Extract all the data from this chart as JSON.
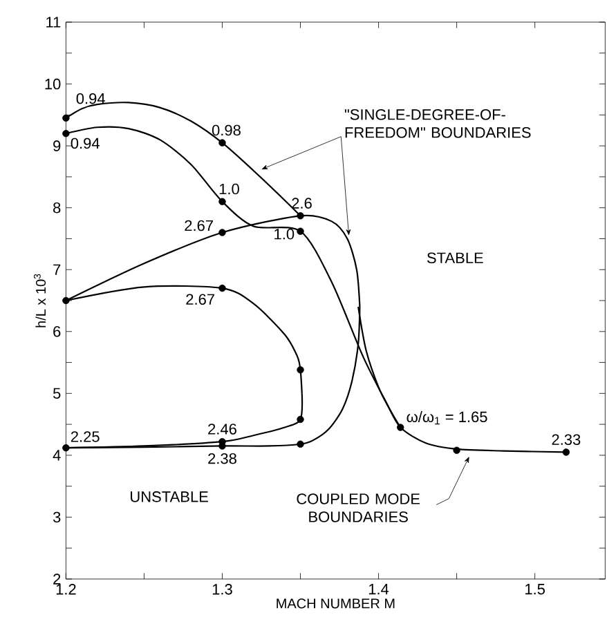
{
  "chart_data": {
    "type": "line",
    "xlabel": "MACH NUMBER M",
    "ylabel": "h/L x 10$^{3}$",
    "xlim": [
      1.2,
      1.545
    ],
    "ylim": [
      2,
      11
    ],
    "xticks": [
      1.2,
      {
        "value": 1.25,
        "label": null
      },
      1.3,
      {
        "value": 1.35,
        "label": null
      },
      1.4,
      {
        "value": 1.45,
        "label": null
      },
      1.5
    ],
    "yticks": [
      2,
      {
        "value": 2.5,
        "label": null
      },
      3,
      {
        "value": 3.5,
        "label": null
      },
      4,
      {
        "value": 4.5,
        "label": null
      },
      5,
      {
        "value": 5.5,
        "label": null
      },
      6,
      {
        "value": 6.5,
        "label": null
      },
      7,
      {
        "value": 7.5,
        "label": null
      },
      8,
      {
        "value": 8.5,
        "label": null
      },
      9,
      {
        "value": 9.5,
        "label": null
      },
      10,
      {
        "value": 10.5,
        "label": null
      },
      11
    ],
    "grid": false,
    "series": [
      {
        "color": "#000000",
        "x": [
          1.2,
          1.21,
          1.22,
          1.24,
          1.26,
          1.28,
          1.3,
          1.32,
          1.34,
          1.35
        ],
        "values": [
          9.45,
          9.6,
          9.67,
          9.7,
          9.62,
          9.4,
          9.05,
          8.6,
          8.12,
          7.87
        ]
      },
      {
        "color": "#000000",
        "x": [
          1.2,
          1.22,
          1.24,
          1.26,
          1.28,
          1.3,
          1.32,
          1.35,
          1.37,
          1.39,
          1.405,
          1.414,
          1.43,
          1.45,
          1.48,
          1.52
        ],
        "values": [
          9.2,
          9.3,
          9.28,
          9.1,
          8.7,
          8.1,
          7.7,
          7.62,
          6.8,
          5.6,
          4.85,
          4.45,
          4.2,
          4.1,
          4.07,
          4.05
        ]
      },
      {
        "type": "line",
        "color": "#000000",
        "x": [
          1.2,
          1.25,
          1.3,
          1.35,
          1.37,
          1.38,
          1.386,
          1.388
        ],
        "values": [
          6.5,
          7.1,
          7.6,
          7.87,
          7.78,
          7.5,
          7.0,
          6.4
        ]
      },
      {
        "type": "line",
        "color": "#000000",
        "x": [
          1.2,
          1.25,
          1.3,
          1.33,
          1.35,
          1.358,
          1.368,
          1.377,
          1.383,
          1.387,
          1.388
        ],
        "values": [
          4.12,
          4.13,
          4.15,
          4.15,
          4.18,
          4.24,
          4.42,
          4.75,
          5.2,
          5.8,
          6.4
        ]
      },
      {
        "type": "line",
        "color": "#000000",
        "x": [
          1.2,
          1.25,
          1.3,
          1.32,
          1.34,
          1.348,
          1.35,
          1.351
        ],
        "values": [
          6.5,
          6.72,
          6.7,
          6.45,
          5.95,
          5.6,
          5.38,
          5.0
        ]
      },
      {
        "type": "line",
        "color": "#000000",
        "x": [
          1.2,
          1.25,
          1.3,
          1.32,
          1.34,
          1.35,
          1.351
        ],
        "values": [
          4.12,
          4.15,
          4.22,
          4.32,
          4.45,
          4.58,
          5.0
        ]
      },
      {
        "color": "#000000",
        "x": [
          1.387,
          1.392,
          1.4,
          1.407,
          1.414
        ],
        "values": [
          6.4,
          5.7,
          5.1,
          4.75,
          4.45
        ]
      },
      {
        "type": "scatter",
        "color": "#000000",
        "marker": "circle",
        "x": [
          1.2,
          1.2,
          1.3,
          1.3,
          1.35,
          1.35,
          1.3,
          1.2,
          1.3,
          1.35,
          1.35,
          1.35,
          1.3,
          1.3,
          1.2,
          1.414,
          1.45,
          1.52
        ],
        "values": [
          9.45,
          9.2,
          9.05,
          8.1,
          7.87,
          7.62,
          7.6,
          6.5,
          6.7,
          5.38,
          4.58,
          4.18,
          4.22,
          4.15,
          4.12,
          4.45,
          4.08,
          4.05
        ]
      }
    ],
    "annotations": [
      {
        "text": "0.94",
        "x": 1.2,
        "y": 9.45
      },
      {
        "text": "0.94",
        "x": 1.2,
        "y": 9.2
      },
      {
        "text": "0.98",
        "x": 1.3,
        "y": 9.05
      },
      {
        "text": "1.0",
        "x": 1.3,
        "y": 8.1
      },
      {
        "text": "2.6",
        "x": 1.35,
        "y": 7.87
      },
      {
        "text": "1.0",
        "x": 1.35,
        "y": 7.62
      },
      {
        "text": "2.67",
        "x": 1.3,
        "y": 7.6
      },
      {
        "text": "2.67",
        "x": 1.3,
        "y": 6.7
      },
      {
        "text": "2.25",
        "x": 1.2,
        "y": 4.12
      },
      {
        "text": "2.46",
        "x": 1.3,
        "y": 4.22
      },
      {
        "text": "2.38",
        "x": 1.3,
        "y": 4.15
      },
      {
        "text": "ω/ω$_{1}$ = 1.65",
        "x": 1.414,
        "y": 4.45
      },
      {
        "text": "2.33",
        "x": 1.52,
        "y": 4.05
      },
      {
        "text": "\"SINGLE-DEGREE-OF-FREEDOM\" BOUNDARIES",
        "x": 1.325,
        "y": 8.62
      },
      "STABLE",
      "UNSTABLE",
      {
        "text": "COUPLED MODE BOUNDARIES",
        "x": 1.458,
        "y": 3.98
      }
    ]
  }
}
